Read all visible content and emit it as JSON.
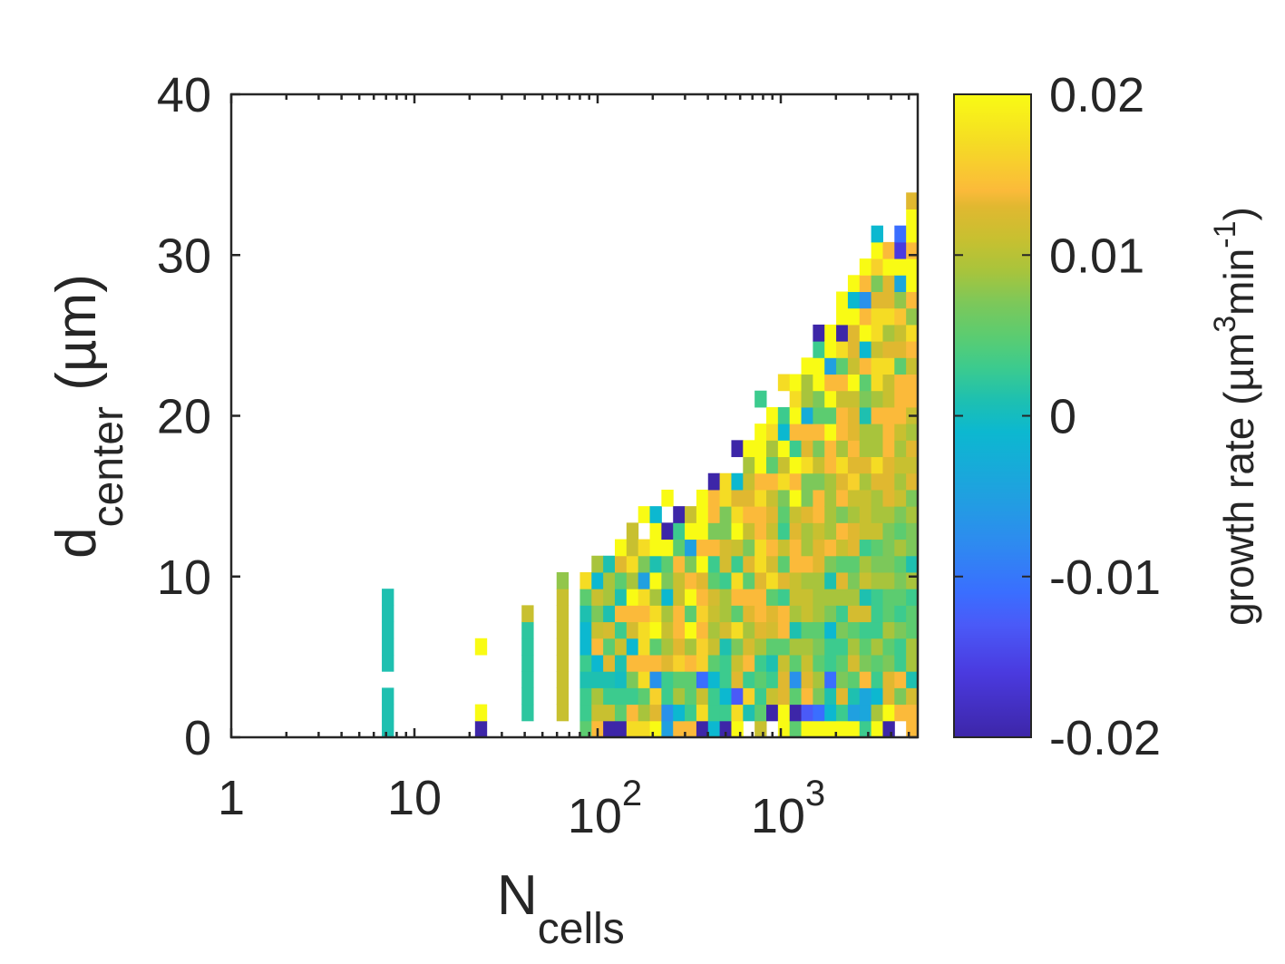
{
  "chart_data": {
    "type": "heatmap",
    "colormap": "parula",
    "xscale": "log",
    "xlim": [
      1,
      5600
    ],
    "ylim": [
      0,
      40
    ],
    "xlabel": {
      "main": "N",
      "sub": "cells"
    },
    "ylabel": {
      "main": "d",
      "sub": "center",
      "unit": " (µm)"
    },
    "xticks": [
      {
        "value": 1,
        "base": "1",
        "exp": ""
      },
      {
        "value": 10,
        "base": "10",
        "exp": ""
      },
      {
        "value": 100,
        "base": "10",
        "exp": "2"
      },
      {
        "value": 1000,
        "base": "10",
        "exp": "3"
      }
    ],
    "yticks": [
      {
        "value": 0,
        "label": "0"
      },
      {
        "value": 10,
        "label": "10"
      },
      {
        "value": 20,
        "label": "20"
      },
      {
        "value": 30,
        "label": "30"
      },
      {
        "value": 40,
        "label": "40"
      }
    ],
    "colorbar": {
      "range": [
        -0.02,
        0.02
      ],
      "ticks": [
        {
          "value": 0.02,
          "label": "0.02"
        },
        {
          "value": 0.01,
          "label": "0.01"
        },
        {
          "value": 0,
          "label": "0"
        },
        {
          "value": -0.01,
          "label": "-0.01"
        },
        {
          "value": -0.02,
          "label": "-0.02"
        }
      ],
      "label": {
        "pre": "growth rate (µm",
        "sup1": "3",
        "mid": "min",
        "sup2": "-1",
        "post": ")"
      }
    },
    "bins": {
      "x_first_bin_log10": 0.822,
      "x_bin_width_log10": 0.0636,
      "y_bin_width_um": 1.027
    },
    "value_scale": 0.001,
    "columns": [
      {
        "i": 0,
        "values_milli": [
          1,
          1,
          1,
          null,
          1,
          1,
          1,
          1,
          1
        ]
      },
      {
        "i": 8,
        "values_milli": [
          -20,
          20,
          null,
          null,
          null,
          20
        ]
      },
      {
        "i": 12,
        "values_milli": [
          null,
          2,
          2,
          2,
          2,
          2,
          2,
          11
        ]
      },
      {
        "i": 15,
        "values_milli": [
          null,
          11,
          11,
          11,
          11,
          11,
          11,
          11,
          11,
          8
        ]
      },
      {
        "i": 17,
        "values_milli": [
          5,
          3,
          3,
          1,
          3,
          -1,
          -1,
          1,
          5,
          17
        ]
      },
      {
        "i": 18,
        "values_milli": [
          14,
          11,
          9,
          1,
          -1,
          14,
          11,
          7,
          11,
          -1,
          9
        ]
      },
      {
        "i": 19,
        "values_milli": [
          -20,
          11,
          3,
          1,
          13,
          5,
          12,
          1,
          9,
          9,
          1
        ]
      },
      {
        "i": 20,
        "values_milli": [
          -20,
          5,
          3,
          0,
          1,
          11,
          3,
          14,
          1,
          5,
          13,
          20
        ]
      },
      {
        "i": 21,
        "values_milli": [
          17,
          14,
          3,
          7,
          14,
          -1,
          12,
          14,
          20,
          9,
          17,
          11,
          11
        ]
      },
      {
        "i": 22,
        "values_milli": [
          17,
          9,
          5,
          17,
          14,
          17,
          17,
          14,
          17,
          -5,
          7,
          17,
          null,
          20
        ]
      },
      {
        "i": 23,
        "values_milli": [
          20,
          13,
          16,
          -7,
          14,
          5,
          20,
          17,
          9,
          20,
          1,
          20,
          20,
          -1
        ]
      },
      {
        "i": 24,
        "values_milli": [
          -5,
          -7,
          3,
          3,
          13,
          9,
          11,
          9,
          -1,
          7,
          5,
          20,
          -20,
          null,
          20
        ]
      },
      {
        "i": 25,
        "values_milli": [
          14,
          -1,
          9,
          5,
          16,
          13,
          14,
          14,
          11,
          11,
          14,
          5,
          3,
          -20
        ]
      },
      {
        "i": 26,
        "values_milli": [
          14,
          3,
          5,
          5,
          14,
          9,
          20,
          5,
          20,
          14,
          7,
          -5,
          20,
          11
        ]
      },
      {
        "i": 27,
        "values_milli": [
          -20,
          17,
          11,
          -11,
          16,
          16,
          14,
          16,
          14,
          13,
          20,
          14,
          20,
          20,
          20
        ]
      },
      {
        "i": 28,
        "values_milli": [
          -1,
          3,
          3,
          -1,
          5,
          11,
          9,
          11,
          12,
          5,
          3,
          14,
          7,
          14,
          14,
          -20
        ]
      },
      {
        "i": 29,
        "values_milli": [
          -20,
          3,
          -1,
          3,
          3,
          1,
          12,
          9,
          9,
          3,
          12,
          12,
          7,
          7,
          17,
          17
        ]
      },
      {
        "i": 30,
        "values_milli": [
          20,
          17,
          -13,
          13,
          11,
          7,
          17,
          5,
          14,
          17,
          3,
          11,
          20,
          17,
          13,
          -1,
          null,
          -20
        ]
      },
      {
        "i": 31,
        "values_milli": [
          null,
          1,
          16,
          3,
          14,
          12,
          9,
          13,
          14,
          5,
          13,
          7,
          11,
          14,
          13,
          11,
          9,
          20
        ]
      },
      {
        "i": 32,
        "values_milli": [
          11,
          5,
          3,
          5,
          3,
          9,
          13,
          14,
          14,
          13,
          17,
          17,
          14,
          14,
          17,
          14,
          20,
          20,
          20,
          null,
          3
        ]
      },
      {
        "i": 33,
        "values_milli": [
          null,
          -20,
          11,
          3,
          1,
          5,
          12,
          13,
          5,
          17,
          12,
          14,
          11,
          13,
          11,
          14,
          5,
          9,
          17,
          20
        ]
      },
      {
        "i": 34,
        "values_milli": [
          20,
          20,
          13,
          13,
          11,
          5,
          14,
          14,
          3,
          13,
          5,
          11,
          3,
          5,
          7,
          17,
          11,
          20,
          -1,
          3,
          null,
          17
        ]
      },
      {
        "i": 35,
        "values_milli": [
          5,
          -20,
          5,
          -7,
          5,
          9,
          1,
          9,
          11,
          11,
          14,
          14,
          13,
          11,
          20,
          14,
          20,
          3,
          14,
          20,
          17,
          20
        ]
      },
      {
        "i": 36,
        "values_milli": [
          20,
          -13,
          14,
          13,
          11,
          9,
          5,
          11,
          11,
          9,
          14,
          9,
          9,
          13,
          7,
          7,
          17,
          13,
          14,
          -3,
          9,
          9,
          20
        ]
      },
      {
        "i": 37,
        "values_milli": [
          20,
          -11,
          7,
          9,
          5,
          7,
          5,
          9,
          9,
          9,
          13,
          13,
          11,
          14,
          14,
          7,
          11,
          7,
          14,
          5,
          7,
          20,
          20,
          3,
          -20
        ]
      },
      {
        "i": 38,
        "values_milli": [
          20,
          -1,
          1,
          -11,
          3,
          3,
          -1,
          7,
          9,
          1,
          7,
          14,
          9,
          9,
          9,
          9,
          14,
          14,
          20,
          5,
          20,
          14,
          -5,
          20,
          20
        ]
      },
      {
        "i": 39,
        "values_milli": [
          20,
          3,
          13,
          7,
          5,
          3,
          7,
          3,
          9,
          13,
          5,
          11,
          14,
          7,
          14,
          13,
          17,
          9,
          14,
          14,
          11,
          14,
          5,
          17,
          -20,
          20,
          20
        ]
      },
      {
        "i": 40,
        "values_milli": [
          20,
          -5,
          1,
          5,
          12,
          9,
          5,
          12,
          9,
          7,
          5,
          13,
          13,
          9,
          11,
          16,
          13,
          14,
          13,
          13,
          11,
          20,
          11,
          13,
          13,
          20,
          -1,
          20
        ]
      },
      {
        "i": 41,
        "values_milli": [
          3,
          -4,
          -4,
          14,
          7,
          5,
          3,
          12,
          1,
          11,
          9,
          3,
          11,
          11,
          11,
          9,
          13,
          9,
          9,
          1,
          7,
          5,
          14,
          -1,
          20,
          14,
          -7,
          14,
          20
        ]
      },
      {
        "i": 42,
        "values_milli": [
          20,
          9,
          -1,
          3,
          5,
          9,
          3,
          3,
          3,
          9,
          7,
          5,
          11,
          9,
          9,
          13,
          17,
          9,
          9,
          14,
          9,
          17,
          17,
          11,
          17,
          17,
          13,
          7,
          16,
          20,
          -1
        ]
      },
      {
        "i": 43,
        "values_milli": [
          -20,
          20,
          13,
          13,
          7,
          5,
          9,
          5,
          5,
          9,
          7,
          7,
          7,
          9,
          13,
          13,
          13,
          14,
          14,
          14,
          11,
          11,
          17,
          13,
          9,
          17,
          13,
          13,
          20,
          14
        ]
      },
      {
        "i": 44,
        "values_milli": [
          null,
          14,
          7,
          14,
          3,
          3,
          7,
          3,
          5,
          7,
          5,
          9,
          5,
          7,
          11,
          9,
          11,
          9,
          11,
          14,
          14,
          14,
          5,
          13,
          11,
          15,
          8,
          -4,
          20,
          -16,
          -11
        ]
      },
      {
        "i": 45,
        "values_milli": [
          14,
          14,
          12,
          1,
          9,
          9,
          5,
          5,
          3,
          9,
          1,
          7,
          7,
          9,
          7,
          13,
          11,
          13,
          9,
          11,
          14,
          14,
          11,
          14,
          17,
          8,
          14,
          20,
          20,
          14,
          20,
          20,
          13
        ]
      }
    ]
  }
}
